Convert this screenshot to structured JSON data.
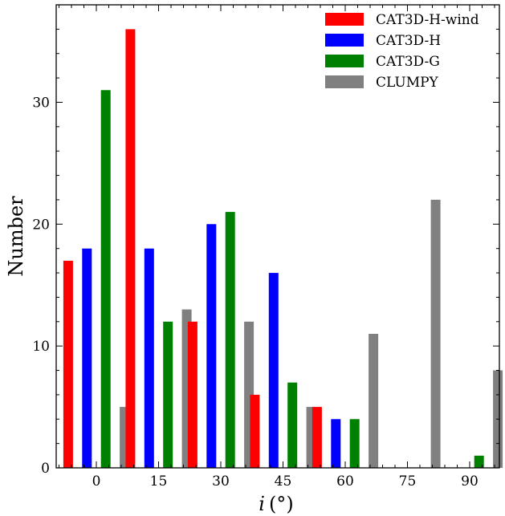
{
  "chart_data": {
    "type": "bar",
    "title": "",
    "xlabel": "i (°)",
    "xlabel_parts": {
      "var": "i",
      "unit": "(°)"
    },
    "ylabel": "Number",
    "categories": [
      "0",
      "15",
      "30",
      "45",
      "60",
      "75",
      "90"
    ],
    "ylim": [
      0,
      38
    ],
    "yticks": [
      0,
      10,
      20,
      30
    ],
    "grid": false,
    "legend_position": "top-right",
    "series": [
      {
        "name": "CAT3D-H-wind",
        "color": "#ff0000",
        "values": [
          17,
          36,
          12,
          6,
          5,
          0,
          0
        ]
      },
      {
        "name": "CAT3D-H",
        "color": "#0000ff",
        "values": [
          18,
          18,
          20,
          16,
          4,
          0,
          0
        ]
      },
      {
        "name": "CAT3D-G",
        "color": "#008000",
        "values": [
          31,
          12,
          21,
          7,
          4,
          0,
          1
        ]
      },
      {
        "name": "CLUMPY",
        "color": "#808080",
        "values": [
          5,
          13,
          12,
          5,
          11,
          22,
          8
        ]
      }
    ]
  }
}
